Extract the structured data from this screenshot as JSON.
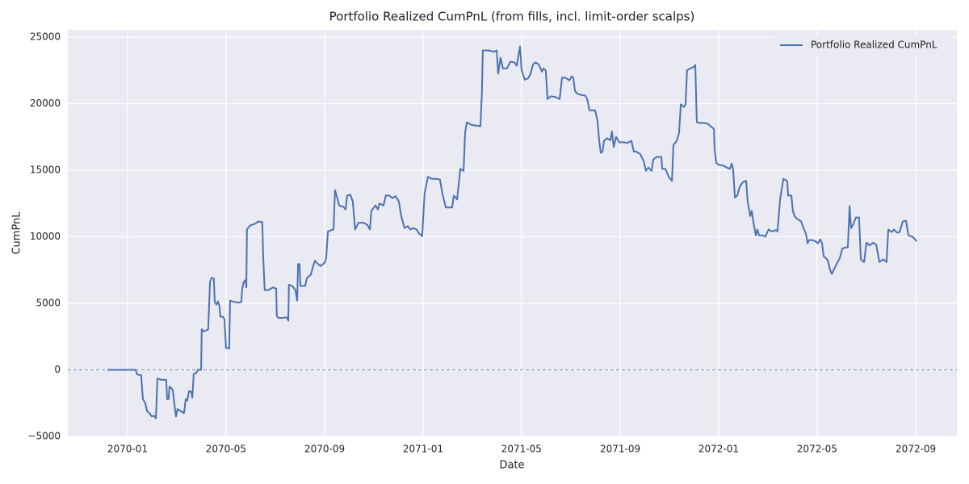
{
  "chart_data": {
    "type": "line",
    "title": "Portfolio Realized CumPnL (from fills, incl. limit-order scalps)",
    "xlabel": "Date",
    "ylabel": "CumPnL",
    "legend": "upper right",
    "grid": true,
    "background": "#eaeaf2",
    "hline": 0,
    "x": [
      2069.932,
      2070.027,
      2070.033,
      2070.046,
      2070.052,
      2070.06,
      2070.066,
      2070.074,
      2070.082,
      2070.09,
      2070.096,
      2070.101,
      2070.115,
      2070.131,
      2070.134,
      2070.139,
      2070.142,
      2070.153,
      2070.158,
      2070.164,
      2070.169,
      2070.18,
      2070.191,
      2070.197,
      2070.202,
      2070.208,
      2070.216,
      2070.219,
      2070.224,
      2070.232,
      2070.238,
      2070.249,
      2070.251,
      2070.257,
      2070.265,
      2070.273,
      2070.279,
      2070.284,
      2070.292,
      2070.295,
      2070.301,
      2070.306,
      2070.311,
      2070.314,
      2070.322,
      2070.328,
      2070.333,
      2070.344,
      2070.347,
      2070.361,
      2070.377,
      2070.385,
      2070.388,
      2070.393,
      2070.399,
      2070.402,
      2070.404,
      2070.415,
      2070.429,
      2070.443,
      2070.456,
      2070.459,
      2070.464,
      2070.478,
      2070.492,
      2070.503,
      2070.505,
      2070.511,
      2070.525,
      2070.538,
      2070.544,
      2070.546,
      2070.557,
      2070.568,
      2070.574,
      2070.577,
      2070.582,
      2070.585,
      2070.601,
      2070.607,
      2070.62,
      2070.628,
      2070.634,
      2070.642,
      2070.653,
      2070.667,
      2070.672,
      2070.678,
      2070.689,
      2070.697,
      2070.702,
      2070.708,
      2070.716,
      2070.73,
      2070.738,
      2070.743,
      2070.754,
      2070.762,
      2070.77,
      2070.781,
      2070.798,
      2070.811,
      2070.82,
      2070.825,
      2070.839,
      2070.847,
      2070.852,
      2070.866,
      2070.874,
      2070.885,
      2070.896,
      2070.907,
      2070.918,
      2070.926,
      2070.937,
      2070.948,
      2070.956,
      2070.967,
      2070.978,
      2070.986,
      2070.997,
      2071.005,
      2071.011,
      2071.016,
      2071.03,
      2071.044,
      2071.057,
      2071.066,
      2071.077,
      2071.098,
      2071.104,
      2071.115,
      2071.126,
      2071.137,
      2071.142,
      2071.148,
      2071.164,
      2071.194,
      2071.199,
      2071.202,
      2071.221,
      2071.24,
      2071.249,
      2071.254,
      2071.262,
      2071.27,
      2071.284,
      2071.295,
      2071.309,
      2071.317,
      2071.322,
      2071.328,
      2071.333,
      2071.344,
      2071.355,
      2071.363,
      2071.372,
      2071.38,
      2071.391,
      2071.402,
      2071.407,
      2071.415,
      2071.421,
      2071.432,
      2071.448,
      2071.462,
      2071.47,
      2071.481,
      2071.495,
      2071.503,
      2071.508,
      2071.514,
      2071.522,
      2071.536,
      2071.549,
      2071.555,
      2071.563,
      2071.571,
      2071.582,
      2071.59,
      2071.596,
      2071.601,
      2071.607,
      2071.612,
      2071.623,
      2071.634,
      2071.639,
      2071.645,
      2071.653,
      2071.664,
      2071.678,
      2071.691,
      2071.705,
      2071.713,
      2071.721,
      2071.735,
      2071.746,
      2071.754,
      2071.762,
      2071.773,
      2071.779,
      2071.79,
      2071.806,
      2071.809,
      2071.82,
      2071.831,
      2071.842,
      2071.847,
      2071.858,
      2071.866,
      2071.872,
      2071.883,
      2071.888,
      2071.893,
      2071.904,
      2071.915,
      2071.921,
      2071.926,
      2071.934,
      2071.951,
      2071.962,
      2071.973,
      2071.984,
      2071.986,
      2071.992,
      2072.0,
      2072.016,
      2072.027,
      2072.038,
      2072.044,
      2072.049,
      2072.055,
      2072.063,
      2072.071,
      2072.082,
      2072.093,
      2072.098,
      2072.107,
      2072.112,
      2072.117,
      2072.126,
      2072.131,
      2072.137,
      2072.15,
      2072.158,
      2072.169,
      2072.18,
      2072.194,
      2072.199,
      2072.208,
      2072.219,
      2072.232,
      2072.235,
      2072.246,
      2072.251,
      2072.257,
      2072.265,
      2072.279,
      2072.287,
      2072.295,
      2072.301,
      2072.306,
      2072.317,
      2072.328,
      2072.336,
      2072.344,
      2072.35,
      2072.355,
      2072.369,
      2072.377,
      2072.383,
      2072.388,
      2072.399,
      2072.41,
      2072.418,
      2072.429,
      2072.437,
      2072.443,
      2072.448,
      2072.456,
      2072.464,
      2072.475,
      2072.481,
      2072.492,
      2072.5,
      2072.511,
      2072.522,
      2072.533,
      2072.544,
      2072.557,
      2072.568,
      2072.574,
      2072.585,
      2072.593,
      2072.604,
      2072.612,
      2072.623,
      2072.634,
      2072.642,
      2072.656,
      2072.667,
      2072.669
    ],
    "series": [
      {
        "name": "Portfolio Realized CumPnL",
        "color": "#4c72b0",
        "values": [
          0,
          0,
          -350,
          -400,
          -2200,
          -2500,
          -3100,
          -3250,
          -3500,
          -3450,
          -3650,
          -650,
          -750,
          -750,
          -2200,
          -2200,
          -1250,
          -1500,
          -2500,
          -3500,
          -2950,
          -3100,
          -3250,
          -2200,
          -2300,
          -1600,
          -1650,
          -2100,
          -300,
          -250,
          0,
          0,
          3050,
          2900,
          2950,
          3050,
          6600,
          6900,
          6850,
          5100,
          4900,
          5150,
          4800,
          4000,
          4000,
          3800,
          1650,
          1600,
          5200,
          5100,
          5050,
          5100,
          6100,
          6600,
          6750,
          6200,
          10550,
          10850,
          10950,
          11150,
          11100,
          8550,
          6000,
          6000,
          6200,
          6100,
          4050,
          3900,
          3900,
          3950,
          3700,
          6400,
          6300,
          6000,
          5200,
          7950,
          7950,
          6300,
          6300,
          6900,
          7150,
          7800,
          8200,
          8000,
          7800,
          8050,
          8400,
          10400,
          10500,
          10550,
          13500,
          13050,
          12350,
          12250,
          12050,
          13100,
          13150,
          12650,
          10550,
          11050,
          11050,
          10900,
          10550,
          11950,
          12350,
          12050,
          12500,
          12350,
          13100,
          13100,
          12900,
          13050,
          12650,
          11550,
          10650,
          10800,
          10550,
          10650,
          10550,
          10250,
          10050,
          13250,
          13900,
          14500,
          14350,
          14350,
          14300,
          13150,
          12200,
          12200,
          13100,
          12800,
          15100,
          14950,
          17800,
          18600,
          18400,
          18300,
          20850,
          24000,
          24000,
          23900,
          24000,
          22250,
          23450,
          22650,
          22650,
          23150,
          23100,
          22850,
          23550,
          24300,
          22550,
          21800,
          21900,
          22200,
          22950,
          23100,
          22950,
          22400,
          22650,
          22500,
          20350,
          20550,
          20500,
          20350,
          21950,
          21950,
          21750,
          22050,
          21950,
          20950,
          20750,
          20650,
          20600,
          20350,
          19500,
          19500,
          19500,
          18700,
          17200,
          16300,
          16400,
          17200,
          17400,
          17250,
          17900,
          16750,
          17500,
          17100,
          17100,
          17050,
          17200,
          16400,
          16400,
          16200,
          15700,
          14950,
          15200,
          14950,
          15800,
          16000,
          16000,
          15100,
          15100,
          14500,
          14200,
          16900,
          17200,
          17800,
          19950,
          19750,
          19950,
          22500,
          22650,
          22750,
          22900,
          18600,
          18550,
          18550,
          18500,
          18300,
          18100,
          16600,
          15550,
          15400,
          15350,
          15200,
          15100,
          15500,
          15050,
          12950,
          13100,
          13750,
          14100,
          14200,
          12650,
          11550,
          11950,
          11150,
          10100,
          10550,
          10100,
          10100,
          10000,
          10550,
          10400,
          10500,
          10400,
          12850,
          14350,
          14200,
          13100,
          13100,
          11950,
          11550,
          11350,
          11150,
          10650,
          10250,
          9500,
          9750,
          9750,
          9650,
          9500,
          9800,
          9500,
          8550,
          8250,
          7500,
          7200,
          7450,
          7950,
          8400,
          9100,
          9200,
          9200,
          12300,
          10650,
          10950,
          11450,
          11450,
          8300,
          8100,
          9550,
          9350,
          9550,
          9400,
          8100,
          8300,
          8100,
          10550,
          10350,
          10550,
          10300,
          10350,
          11150,
          11200,
          10100,
          10000,
          9750,
          9650
        ]
      }
    ],
    "xlim": [
      2069.798,
      2072.806
    ],
    "xticks": [
      {
        "value": 2070.0,
        "label": "2070-01"
      },
      {
        "value": 2070.333,
        "label": "2070-05"
      },
      {
        "value": 2070.667,
        "label": "2070-09"
      },
      {
        "value": 2071.0,
        "label": "2071-01"
      },
      {
        "value": 2071.333,
        "label": "2071-05"
      },
      {
        "value": 2071.667,
        "label": "2071-09"
      },
      {
        "value": 2072.0,
        "label": "2072-01"
      },
      {
        "value": 2072.333,
        "label": "2072-05"
      },
      {
        "value": 2072.667,
        "label": "2072-09"
      }
    ],
    "ylim": [
      -5000,
      25545
    ],
    "yticks": [
      {
        "value": -5000,
        "label": "−5000"
      },
      0,
      5000,
      10000,
      15000,
      20000,
      25000
    ]
  }
}
